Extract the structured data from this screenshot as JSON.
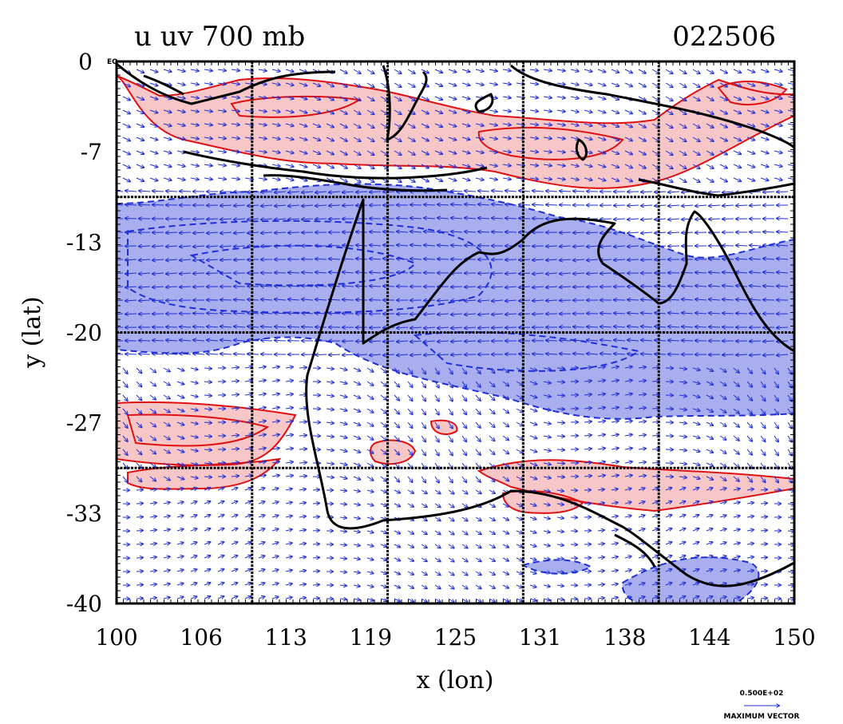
{
  "chart_data": {
    "type": "heatmap",
    "title": "u uv 700 mb",
    "date_label": "022506",
    "xlabel": "x (lon)",
    "ylabel": "y (lat)",
    "x_range": [
      100,
      150
    ],
    "y_range": [
      -40,
      0
    ],
    "x_ticks": [
      "100",
      "106",
      "113",
      "119",
      "125",
      "131",
      "138",
      "144",
      "150"
    ],
    "y_ticks": [
      "0",
      "-7",
      "-13",
      "-20",
      "-27",
      "-33",
      "-40"
    ],
    "corner_label": "EQ",
    "grid_lon": [
      110,
      120,
      130,
      140
    ],
    "grid_lat": [
      -10,
      -20,
      -30
    ],
    "colors": {
      "positive_fill": "#f7c6c6",
      "positive_line": "#e01010",
      "negative_fill": "#a9aeef",
      "negative_line": "#1f2fd8",
      "vectors": "#1f2fd8",
      "coast": "#000000"
    },
    "legend": {
      "vector_value": "0.500E+02",
      "vector_label": "MAXIMUM VECTOR"
    },
    "regions": [
      {
        "sign": "positive",
        "name": "north-easterly-band"
      },
      {
        "sign": "negative",
        "name": "central-easterly-band"
      },
      {
        "sign": "positive",
        "name": "southern-westerly-band"
      },
      {
        "sign": "negative",
        "name": "southeast-cell"
      }
    ]
  }
}
